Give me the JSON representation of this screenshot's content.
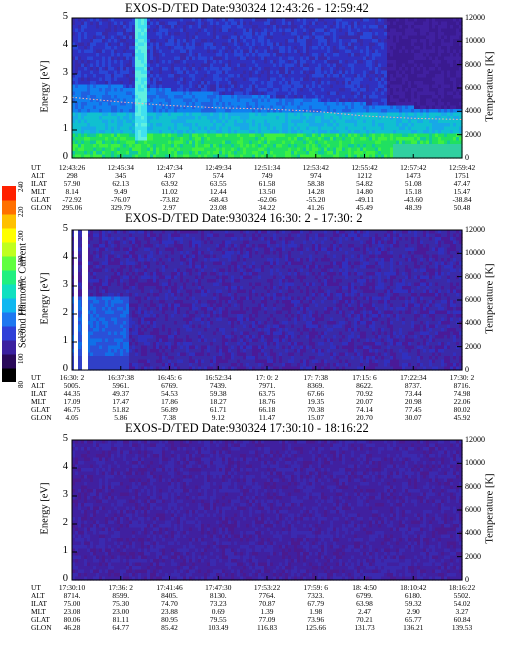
{
  "colorbar": {
    "label": "Second Harmonic Current",
    "ticks": [
      "240",
      "220",
      "200",
      "180",
      "160",
      "140",
      "120",
      "100",
      "80"
    ],
    "colors": [
      "#000000",
      "#2a0a5a",
      "#3b20a0",
      "#2f40d8",
      "#1f78f0",
      "#10b8f0",
      "#10e0c0",
      "#20f080",
      "#60ff40",
      "#c0ff20",
      "#ffff00",
      "#ffc000",
      "#ff7000",
      "#ff2000"
    ]
  },
  "panels": [
    {
      "title": "EXOS-D/TED   Date:930324   12:43:26 - 12:59:42",
      "ylabel": "Energy [eV]",
      "y2label": "Temperature [K]",
      "yticks": [
        "5",
        "4",
        "3",
        "2",
        "1",
        "0"
      ],
      "y2ticks": [
        "12000",
        "10000",
        "8000",
        "6000",
        "4000",
        "2000",
        "0"
      ],
      "table": {
        "row_labels": [
          "UT",
          "ALT",
          "ILAT",
          "MLT",
          "GLAT",
          "GLON"
        ],
        "columns": [
          [
            "12:43:26",
            "298",
            "57.90",
            "8.14",
            "-72.92",
            "295.06"
          ],
          [
            "12:45:34",
            "345",
            "62.13",
            "9.49",
            "-76.07",
            "329.79"
          ],
          [
            "12:47:34",
            "437",
            "63.92",
            "11.02",
            "-73.82",
            "2.97"
          ],
          [
            "12:49:34",
            "574",
            "63.55",
            "12.44",
            "-68.43",
            "23.08"
          ],
          [
            "12:51:34",
            "749",
            "61.58",
            "13.50",
            "-62.06",
            "34.22"
          ],
          [
            "12:53:42",
            "974",
            "58.38",
            "14.28",
            "-55.20",
            "41.26"
          ],
          [
            "12:55:42",
            "1212",
            "54.82",
            "14.80",
            "-49.11",
            "45.49"
          ],
          [
            "12:57:42",
            "1473",
            "51.08",
            "15.18",
            "-43.60",
            "48.39"
          ],
          [
            "12:59:42",
            "1751",
            "47.47",
            "15.47",
            "-38.84",
            "50.48"
          ]
        ]
      }
    },
    {
      "title": "EXOS-D/TED   Date:930324   16:30: 2 - 17:30: 2",
      "ylabel": "Energy [eV]",
      "y2label": "Temperature [K]",
      "yticks": [
        "5",
        "4",
        "3",
        "2",
        "1",
        "0"
      ],
      "y2ticks": [
        "12000",
        "10000",
        "8000",
        "6000",
        "4000",
        "2000",
        "0"
      ],
      "table": {
        "row_labels": [
          "UT",
          "ALT",
          "ILAT",
          "MLT",
          "GLAT",
          "GLON"
        ],
        "columns": [
          [
            "16:30: 2",
            "5005.",
            "44.35",
            "17.09",
            "46.75",
            "4.05"
          ],
          [
            "16:37:38",
            "5961.",
            "49.37",
            "17.47",
            "51.82",
            "5.86"
          ],
          [
            "16:45: 6",
            "6769.",
            "54.53",
            "17.86",
            "56.89",
            "7.38"
          ],
          [
            "16:52:34",
            "7439.",
            "59.38",
            "18.27",
            "61.71",
            "9.12"
          ],
          [
            "17: 0: 2",
            "7971.",
            "63.75",
            "18.76",
            "66.18",
            "11.47"
          ],
          [
            "17: 7:38",
            "8369.",
            "67.66",
            "19.35",
            "70.38",
            "15.07"
          ],
          [
            "17:15: 6",
            "8622.",
            "70.92",
            "20.07",
            "74.14",
            "20.70"
          ],
          [
            "17:22:34",
            "8737.",
            "73.44",
            "20.98",
            "77.45",
            "30.07"
          ],
          [
            "17:30: 2",
            "8716.",
            "74.98",
            "22.06",
            "80.02",
            "45.92"
          ]
        ]
      }
    },
    {
      "title": "EXOS-D/TED   Date:930324   17:30:10 - 18:16:22",
      "ylabel": "Energy [eV]",
      "y2label": "Temperature [K]",
      "yticks": [
        "5",
        "4",
        "3",
        "2",
        "1",
        "0"
      ],
      "y2ticks": [
        "12000",
        "10000",
        "8000",
        "6000",
        "4000",
        "2000",
        "0"
      ],
      "table": {
        "row_labels": [
          "UT",
          "ALT",
          "ILAT",
          "MLT",
          "GLAT",
          "GLON"
        ],
        "columns": [
          [
            "17:30:10",
            "8714.",
            "75.00",
            "23.08",
            "80.06",
            "46.28"
          ],
          [
            "17:36: 2",
            "8599.",
            "75.30",
            "23.00",
            "81.11",
            "64.77"
          ],
          [
            "17:41:46",
            "8405.",
            "74.70",
            "23.88",
            "80.95",
            "85.42"
          ],
          [
            "17:47:30",
            "8130.",
            "73.23",
            "0.69",
            "79.55",
            "103.49"
          ],
          [
            "17:53:22",
            "7764.",
            "70.87",
            "1.39",
            "77.09",
            "116.83"
          ],
          [
            "17:59: 6",
            "7323.",
            "67.79",
            "1.98",
            "73.96",
            "125.66"
          ],
          [
            "18: 4:50",
            "6799.",
            "63.98",
            "2.47",
            "70.21",
            "131.73"
          ],
          [
            "18:10:42",
            "6180.",
            "59.32",
            "2.90",
            "65.77",
            "136.21"
          ],
          [
            "18:16:22",
            "5502.",
            "54.02",
            "3.27",
            "60.84",
            "139.53"
          ]
        ]
      }
    }
  ],
  "chart_data": [
    {
      "type": "heatmap",
      "title": "EXOS-D/TED   Date:930324   12:43:26 - 12:59:42",
      "xlabel": "UT",
      "ylabel": "Energy [eV]",
      "y2label": "Temperature [K]",
      "ylim": [
        0,
        5
      ],
      "y2lim": [
        0,
        12000
      ],
      "x_ticks": [
        "12:43:26",
        "12:45:34",
        "12:47:34",
        "12:49:34",
        "12:51:34",
        "12:53:42",
        "12:55:42",
        "12:57:42",
        "12:59:42"
      ],
      "color_scale": [
        80,
        240
      ],
      "temperature_trace_approx_K": [
        5200,
        4800,
        4500,
        4300,
        4200,
        4000,
        3600,
        3400,
        3300
      ]
    },
    {
      "type": "heatmap",
      "title": "EXOS-D/TED   Date:930324   16:30: 2 - 17:30: 2",
      "xlabel": "UT",
      "ylabel": "Energy [eV]",
      "y2label": "Temperature [K]",
      "ylim": [
        0,
        5
      ],
      "y2lim": [
        0,
        12000
      ],
      "x_ticks": [
        "16:30: 2",
        "16:37:38",
        "16:45: 6",
        "16:52:34",
        "17: 0: 2",
        "17: 7:38",
        "17:15: 6",
        "17:22:34",
        "17:30: 2"
      ],
      "color_scale": [
        80,
        240
      ]
    },
    {
      "type": "heatmap",
      "title": "EXOS-D/TED   Date:930324   17:30:10 - 18:16:22",
      "xlabel": "UT",
      "ylabel": "Energy [eV]",
      "y2label": "Temperature [K]",
      "ylim": [
        0,
        5
      ],
      "y2lim": [
        0,
        12000
      ],
      "x_ticks": [
        "17:30:10",
        "17:36: 2",
        "17:41:46",
        "17:47:30",
        "17:53:22",
        "17:59: 6",
        "18: 4:50",
        "18:10:42",
        "18:16:22"
      ],
      "color_scale": [
        80,
        240
      ]
    }
  ]
}
